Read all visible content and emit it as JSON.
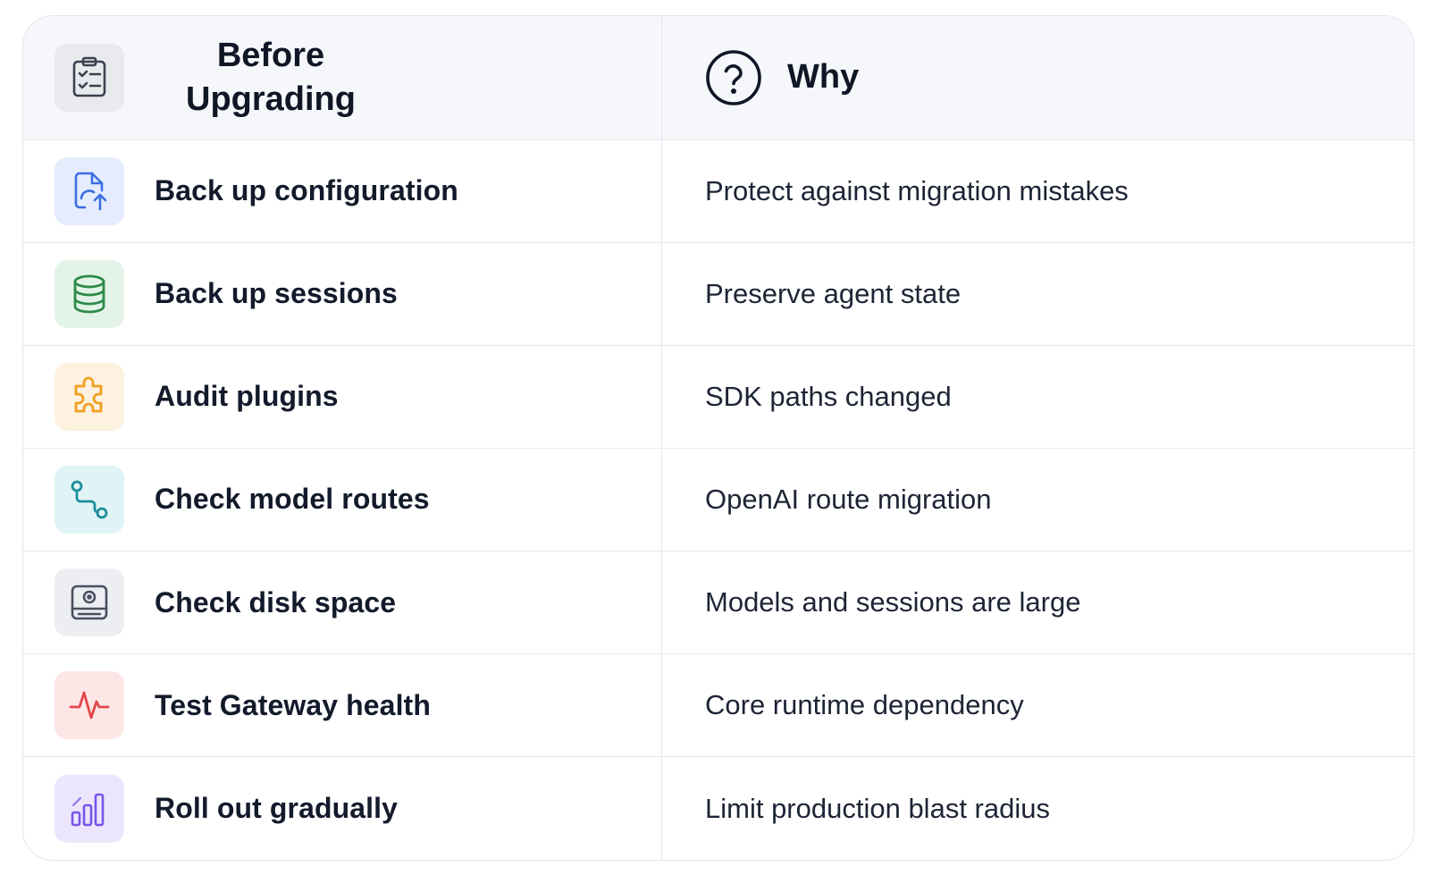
{
  "header": {
    "col1_title": "Before Upgrading",
    "col1_icon": "clipboard-check-icon",
    "col2_title": "Why",
    "col2_icon": "question-circle-icon"
  },
  "rows": [
    {
      "step": "Back up configuration",
      "why": "Protect against migration mistakes",
      "icon": "file-upload-icon",
      "color": "#3b6fe0",
      "tile": "#e4ecfd"
    },
    {
      "step": "Back up sessions",
      "why": "Preserve agent state",
      "icon": "database-icon",
      "color": "#2c8a4a",
      "tile": "#e4f3e8"
    },
    {
      "step": "Audit plugins",
      "why": "SDK paths changed",
      "icon": "puzzle-icon",
      "color": "#f0a020",
      "tile": "#fdf1e0"
    },
    {
      "step": "Check model routes",
      "why": "OpenAI route migration",
      "icon": "route-icon",
      "color": "#1e8e9c",
      "tile": "#e1f4f5"
    },
    {
      "step": "Check disk space",
      "why": "Models and sessions are large",
      "icon": "hard-drive-icon",
      "color": "#4a5060",
      "tile": "#eceef2"
    },
    {
      "step": "Test Gateway health",
      "why": "Core runtime dependency",
      "icon": "activity-icon",
      "color": "#e0484a",
      "tile": "#fde6e6"
    },
    {
      "step": "Roll out gradually",
      "why": "Limit production blast radius",
      "icon": "bar-chart-icon",
      "color": "#7a55e6",
      "tile": "#ece6fd"
    }
  ]
}
